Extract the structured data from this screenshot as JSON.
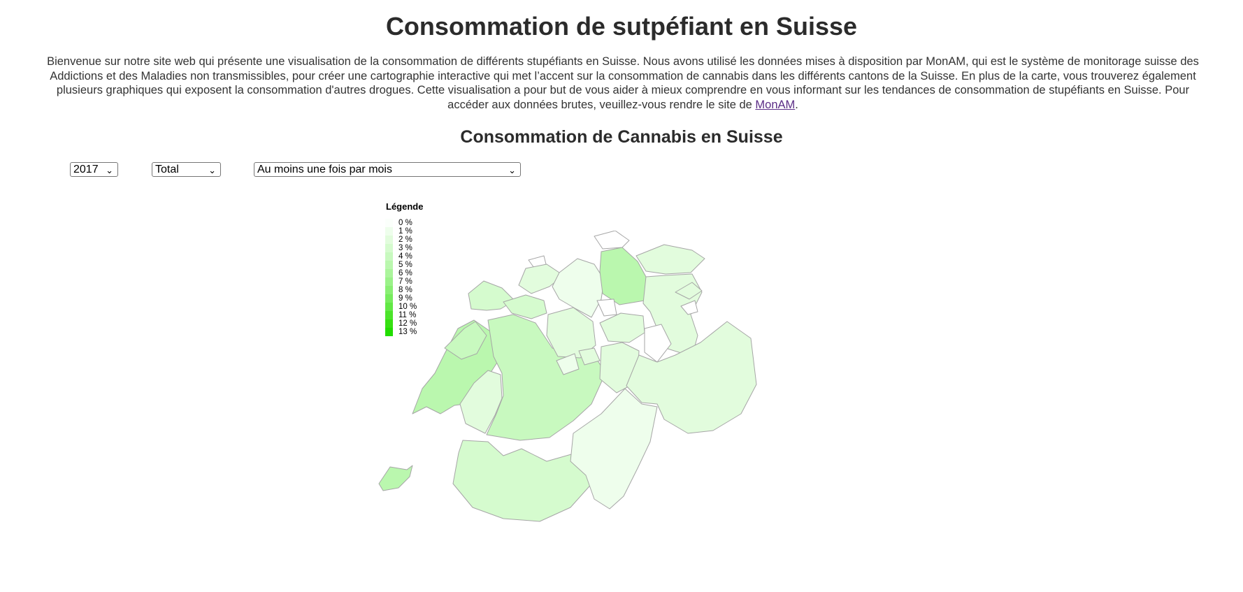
{
  "page": {
    "title": "Consommation de sutpéfiant en Suisse",
    "intro_text": "Bienvenue sur notre site web qui présente une visualisation de la consommation de différents stupéfiants en Suisse. Nous avons utilisé les données mises à disposition par MonAM, qui est le système de monitorage suisse des Addictions et des Maladies non transmissibles, pour créer une cartographie interactive qui met l’accent sur la consommation de cannabis dans les différents cantons de la Suisse. En plus de la carte, vous trouverez également plusieurs graphiques qui exposent la consommation d'autres drogues. Cette visualisation a pour but de vous aider à mieux comprendre en vous informant sur les tendances de consommation de stupéfiants en Suisse. Pour accéder aux données brutes, veuillez-vous rendre le site de ",
    "intro_link_text": "MonAM",
    "intro_end": ".",
    "section_title": "Consommation de Cannabis en Suisse"
  },
  "filters": {
    "year": "2017",
    "sex": "Total",
    "frequency": "Au moins une fois par mois"
  },
  "legend": {
    "title": "Légende",
    "items": [
      {
        "label": "0 %",
        "color": "#fbfffb"
      },
      {
        "label": "1 %",
        "color": "#eefeec"
      },
      {
        "label": "2 %",
        "color": "#e2fcdd"
      },
      {
        "label": "3 %",
        "color": "#d5fbce"
      },
      {
        "label": "4 %",
        "color": "#c8f9bf"
      },
      {
        "label": "5 %",
        "color": "#baf7ae"
      },
      {
        "label": "6 %",
        "color": "#abf59c"
      },
      {
        "label": "7 %",
        "color": "#9bf289"
      },
      {
        "label": "8 %",
        "color": "#8aef74"
      },
      {
        "label": "9 %",
        "color": "#77ec5e"
      },
      {
        "label": "10 %",
        "color": "#62e845"
      },
      {
        "label": "11 %",
        "color": "#4ce42b"
      },
      {
        "label": "12 %",
        "color": "#36e012"
      },
      {
        "label": "13 %",
        "color": "#22dd00"
      }
    ]
  },
  "map": {
    "cantons": [
      {
        "name": "VD",
        "color": "#baf7ae"
      },
      {
        "name": "GE",
        "color": "#baf7ae"
      },
      {
        "name": "VS",
        "color": "#d5fbce"
      },
      {
        "name": "FR",
        "color": "#e2fcdd"
      },
      {
        "name": "NE",
        "color": "#c8f9bf"
      },
      {
        "name": "JU",
        "color": "#d5fbce"
      },
      {
        "name": "BE",
        "color": "#c8f9bf"
      },
      {
        "name": "SO",
        "color": "#d5fbce"
      },
      {
        "name": "BS",
        "color": "#ffffff"
      },
      {
        "name": "BL",
        "color": "#e2fcdd"
      },
      {
        "name": "AG",
        "color": "#eefeec"
      },
      {
        "name": "LU",
        "color": "#e2fcdd"
      },
      {
        "name": "ZH",
        "color": "#baf7ae"
      },
      {
        "name": "SH",
        "color": "#ffffff"
      },
      {
        "name": "TG",
        "color": "#e2fcdd"
      },
      {
        "name": "SG",
        "color": "#e2fcdd"
      },
      {
        "name": "AR",
        "color": "#e2fcdd"
      },
      {
        "name": "AI",
        "color": "#ffffff"
      },
      {
        "name": "GL",
        "color": "#ffffff"
      },
      {
        "name": "SZ",
        "color": "#e2fcdd"
      },
      {
        "name": "ZG",
        "color": "#ffffff"
      },
      {
        "name": "OW",
        "color": "#eefeec"
      },
      {
        "name": "NW",
        "color": "#e2fcdd"
      },
      {
        "name": "UR",
        "color": "#e2fcdd"
      },
      {
        "name": "GR",
        "color": "#e2fcdd"
      },
      {
        "name": "TI",
        "color": "#eefeec"
      }
    ]
  }
}
